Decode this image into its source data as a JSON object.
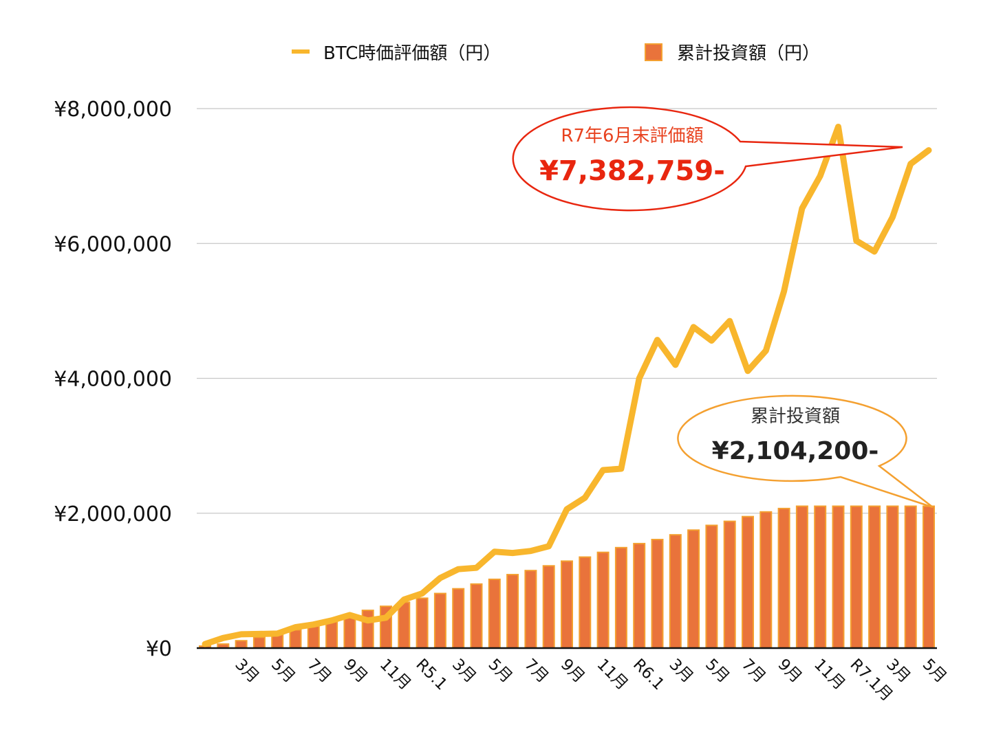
{
  "chart_data": {
    "type": "bar+line",
    "title": "",
    "xlabel": "",
    "ylabel": "",
    "ylim": [
      0,
      8000000
    ],
    "y_ticks": [
      "¥0",
      "¥2,000,000",
      "¥4,000,000",
      "¥6,000,000",
      "¥8,000,000"
    ],
    "x_tick_labels": [
      {
        "index": 2,
        "label": "3月"
      },
      {
        "index": 4,
        "label": "5月"
      },
      {
        "index": 6,
        "label": "7月"
      },
      {
        "index": 8,
        "label": "9月"
      },
      {
        "index": 10,
        "label": "11月"
      },
      {
        "index": 12,
        "label": "R5.1"
      },
      {
        "index": 14,
        "label": "3月"
      },
      {
        "index": 16,
        "label": "5月"
      },
      {
        "index": 18,
        "label": "7月"
      },
      {
        "index": 20,
        "label": "9月"
      },
      {
        "index": 22,
        "label": "11月"
      },
      {
        "index": 24,
        "label": "R6.1"
      },
      {
        "index": 26,
        "label": "3月"
      },
      {
        "index": 28,
        "label": "5月"
      },
      {
        "index": 30,
        "label": "7月"
      },
      {
        "index": 32,
        "label": "9月"
      },
      {
        "index": 34,
        "label": "11月"
      },
      {
        "index": 36,
        "label": "R7.1月"
      },
      {
        "index": 38,
        "label": "3月"
      },
      {
        "index": 40,
        "label": "5月"
      }
    ],
    "legend_position": "top",
    "grid": true,
    "series": [
      {
        "name": "BTC時価評価額（円）",
        "type": "line",
        "color": "#f8b62d",
        "values": [
          60000,
          150000,
          205000,
          210000,
          215000,
          310000,
          350000,
          410000,
          490000,
          410000,
          450000,
          720000,
          810000,
          1040000,
          1170000,
          1190000,
          1430000,
          1410000,
          1440000,
          1510000,
          2060000,
          2230000,
          2640000,
          2660000,
          4000000,
          4570000,
          4200000,
          4760000,
          4560000,
          4850000,
          4110000,
          4410000,
          5290000,
          6520000,
          7000000,
          7730000,
          6040000,
          5880000,
          6390000,
          7180000,
          7382759
        ]
      },
      {
        "name": "累計投資額（円）",
        "type": "bar",
        "color": "#e9733b",
        "values": [
          30000,
          60000,
          110000,
          160000,
          210000,
          270000,
          330000,
          400000,
          480000,
          560000,
          620000,
          680000,
          740000,
          810000,
          880000,
          950000,
          1020000,
          1090000,
          1150000,
          1220000,
          1290000,
          1350000,
          1420000,
          1490000,
          1550000,
          1610000,
          1680000,
          1750000,
          1820000,
          1880000,
          1950000,
          2020000,
          2070000,
          2104200,
          2104200,
          2104200,
          2104200,
          2104200,
          2104200,
          2104200,
          2104200
        ]
      }
    ],
    "annotations": [
      {
        "label": "R7年6月末評価額",
        "value": "¥7,382,759-",
        "color": "#e8260f"
      },
      {
        "label": "累計投資額",
        "value": "¥2,104,200-",
        "color": "#f4a030"
      }
    ]
  }
}
